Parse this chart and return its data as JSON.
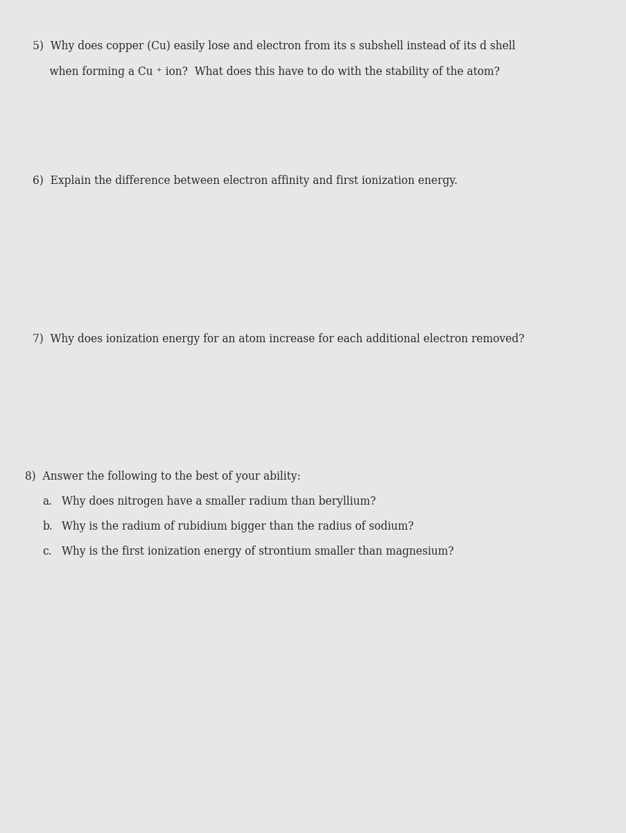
{
  "bg_color": "#c8c7c5",
  "page_color": "#e8e7e5",
  "text_color": "#2a2828",
  "font_size": 11.2,
  "q5_line1": "5)  Why does copper (Cu) easily lose and electron from its s subshell instead of its d shell",
  "q5_line2": "     when forming a Cu ⁺ ion?  What does this have to do with the stability of the atom?",
  "q6_line": "6)  Explain the difference between electron affinity and first ionization energy.",
  "q7_line": "7)  Why does ionization energy for an atom increase for each additional electron removed?",
  "q8_line": "8)  Answer the following to the best of your ability:",
  "q8a_label": "a.",
  "q8a_text": "Why does nitrogen have a smaller radium than beryllium?",
  "q8b_label": "b.",
  "q8b_text": "Why is the radium of rubidium bigger than the radius of sodium?",
  "q8c_label": "c.",
  "q8c_text": "Why is the first ionization energy of strontium smaller than magnesium?"
}
